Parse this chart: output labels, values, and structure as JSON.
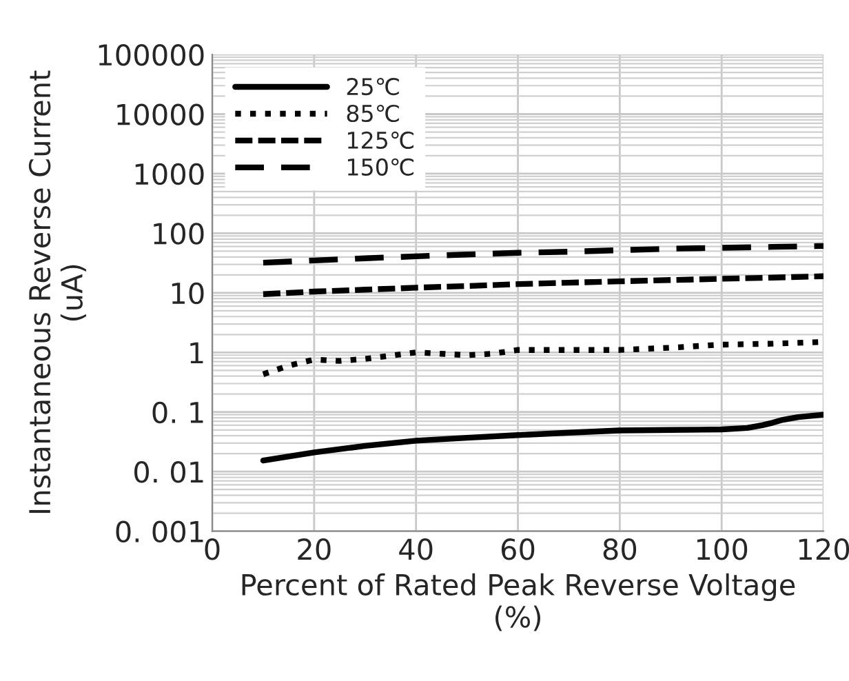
{
  "chart_data": {
    "type": "line",
    "xlabel": "Percent of Rated Peak Reverse Voltage\n(%)",
    "ylabel": "Instantaneous Reverse Current\n(uA)",
    "log": "y",
    "xlim": [
      0,
      120
    ],
    "xticks": [
      0,
      20,
      40,
      60,
      80,
      100,
      120
    ],
    "ylim": [
      0.001,
      100000
    ],
    "yticks": [
      {
        "value": 0.001,
        "label": "0. 001"
      },
      {
        "value": 0.01,
        "label": "0. 01"
      },
      {
        "value": 0.1,
        "label": "0. 1"
      },
      1,
      10,
      100,
      1000,
      10000,
      100000
    ],
    "grid": true,
    "legend": "top left",
    "series": [
      {
        "name": "25℃",
        "color": "#000000",
        "line_style": "solid",
        "x": [
          10,
          20,
          30,
          40,
          50,
          60,
          70,
          80,
          90,
          100,
          105,
          108,
          110,
          112,
          115,
          120
        ],
        "values": [
          0.0153,
          0.021,
          0.027,
          0.033,
          0.037,
          0.041,
          0.045,
          0.049,
          0.05,
          0.051,
          0.054,
          0.06,
          0.066,
          0.074,
          0.082,
          0.09
        ]
      },
      {
        "name": "85℃",
        "color": "#000000",
        "line_style": "dotted",
        "x": [
          10,
          15,
          20,
          25,
          30,
          35,
          40,
          45,
          50,
          55,
          60,
          70,
          80,
          90,
          100,
          110,
          120
        ],
        "values": [
          0.43,
          0.6,
          0.76,
          0.72,
          0.78,
          0.88,
          1.0,
          0.95,
          0.9,
          0.95,
          1.1,
          1.1,
          1.1,
          1.2,
          1.35,
          1.4,
          1.5
        ]
      },
      {
        "name": "125℃",
        "color": "#000000",
        "line_style": "dashed",
        "x": [
          10,
          20,
          30,
          40,
          50,
          60,
          70,
          80,
          90,
          100,
          110,
          120
        ],
        "values": [
          9.5,
          10.5,
          11.3,
          12.2,
          13,
          14,
          14.8,
          15.6,
          16.4,
          17.2,
          18,
          19
        ]
      },
      {
        "name": "150℃",
        "color": "#000000",
        "line_style": "longdash",
        "x": [
          10,
          20,
          30,
          40,
          50,
          60,
          70,
          80,
          90,
          100,
          110,
          120
        ],
        "values": [
          32,
          35,
          38,
          41,
          44,
          47,
          49,
          52,
          55,
          57,
          59,
          61
        ]
      }
    ]
  }
}
